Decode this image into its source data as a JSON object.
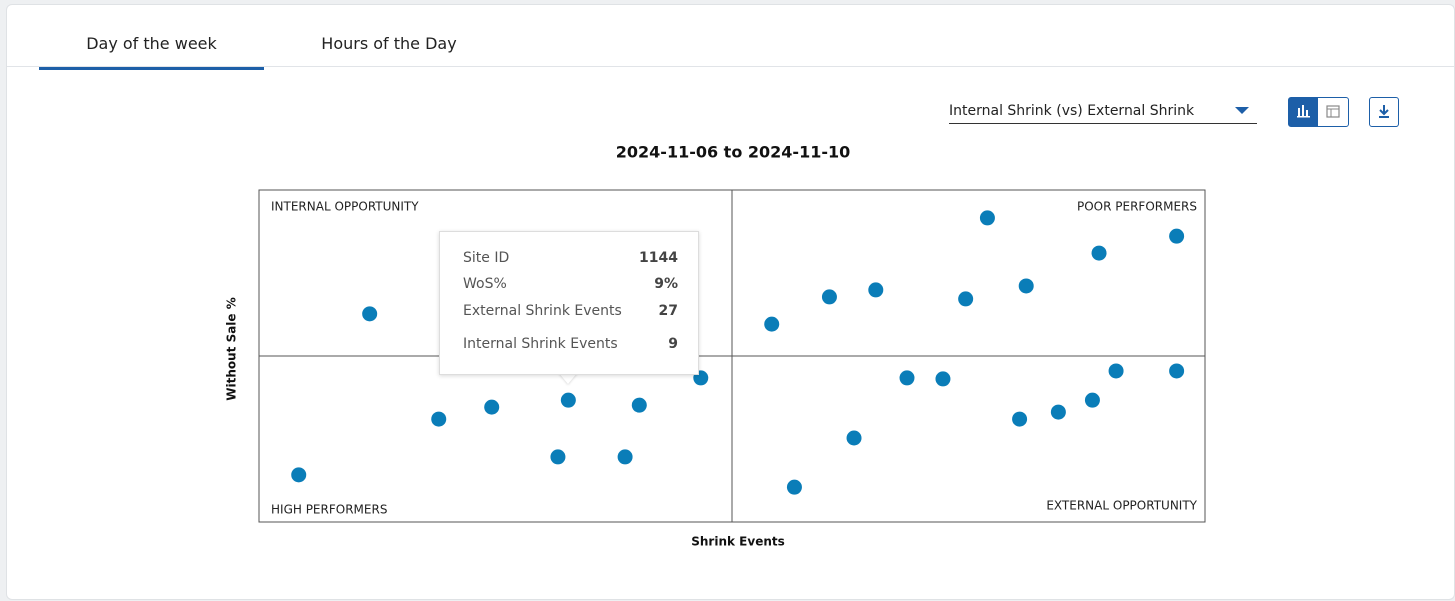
{
  "tabs": [
    "Day of the week",
    "Hours of the Day"
  ],
  "dropdown": "Internal Shrink (vs) External Shrink",
  "tooltip": {
    "rows": [
      {
        "label": "Site ID",
        "value": "1144"
      },
      {
        "label": "WoS%",
        "value": "9%"
      },
      {
        "label": "External Shrink Events",
        "value": "27"
      },
      {
        "label": "Internal Shrink Events",
        "value": "9"
      }
    ]
  },
  "chart_data": {
    "type": "scatter",
    "title": "2024-11-06 to 2024-11-10",
    "xlabel": "Shrink Events",
    "ylabel": "Without Sale %",
    "annotations": [
      "INTERNAL OPPORTUNITY",
      "POOR PERFORMERS",
      "HIGH PERFORMERS",
      "EXTERNAL OPPORTUNITY"
    ],
    "color": "#0a7db8",
    "xlim": [
      0,
      100
    ],
    "ylim": [
      0,
      100
    ],
    "x": [
      11.7,
      4.2,
      19.0,
      24.6,
      32.7,
      31.6,
      38.7,
      40.2,
      46.7,
      54.2,
      60.3,
      65.2,
      74.7,
      77.0,
      81.1,
      88.8,
      97.0,
      56.6,
      62.9,
      68.5,
      72.3,
      80.4,
      84.5,
      88.1,
      90.6,
      97.0
    ],
    "values": [
      62.7,
      14.2,
      31.0,
      34.6,
      36.7,
      19.6,
      19.6,
      35.2,
      43.4,
      59.6,
      67.8,
      69.9,
      67.2,
      91.6,
      71.1,
      81.0,
      86.1,
      10.5,
      25.3,
      43.4,
      43.1,
      31.0,
      33.1,
      36.7,
      45.5,
      45.5
    ]
  }
}
